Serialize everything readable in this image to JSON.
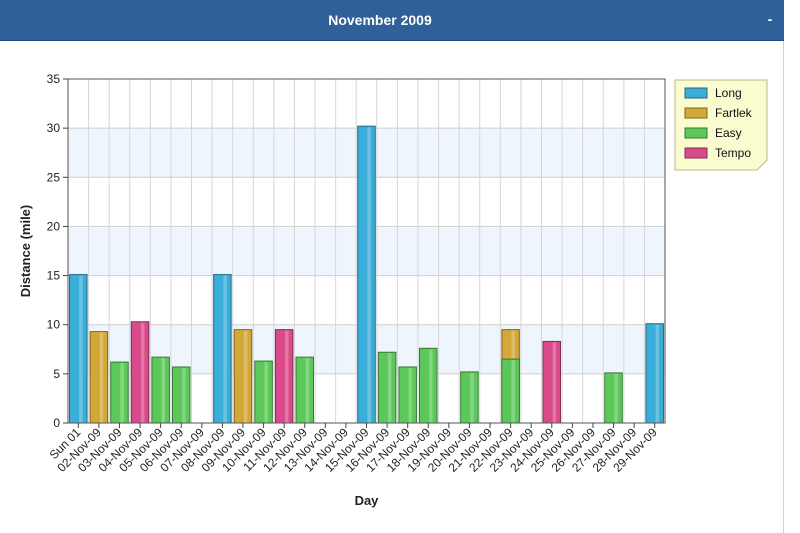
{
  "header": {
    "title": "November 2009",
    "collapse_label": "-"
  },
  "colors": {
    "header_bg": "#30609a",
    "band": "#eef5fc",
    "Long": "#3aaed8",
    "Fartlek": "#d4a838",
    "Easy": "#5cc85a",
    "Tempo": "#d84a8a"
  },
  "chart_data": {
    "type": "bar",
    "xlabel": "Day",
    "ylabel": "Distance (mile)",
    "ylim": [
      0,
      35
    ],
    "yticks": [
      0,
      5,
      10,
      15,
      20,
      25,
      30,
      35
    ],
    "grid": true,
    "legend_position": "top-right",
    "categories": [
      "Sun 01",
      "02-Nov-09",
      "03-Nov-09",
      "04-Nov-09",
      "05-Nov-09",
      "06-Nov-09",
      "07-Nov-09",
      "08-Nov-09",
      "09-Nov-09",
      "10-Nov-09",
      "11-Nov-09",
      "12-Nov-09",
      "13-Nov-09",
      "14-Nov-09",
      "15-Nov-09",
      "16-Nov-09",
      "17-Nov-09",
      "18-Nov-09",
      "19-Nov-09",
      "20-Nov-09",
      "21-Nov-09",
      "22-Nov-09",
      "23-Nov-09",
      "24-Nov-09",
      "25-Nov-09",
      "26-Nov-09",
      "27-Nov-09",
      "28-Nov-09",
      "29-Nov-09"
    ],
    "series": [
      {
        "name": "Long",
        "values": [
          15.1,
          null,
          null,
          null,
          null,
          null,
          null,
          15.1,
          null,
          null,
          null,
          null,
          null,
          null,
          30.2,
          null,
          null,
          null,
          null,
          null,
          null,
          null,
          null,
          null,
          null,
          null,
          null,
          null,
          10.1
        ]
      },
      {
        "name": "Fartlek",
        "values": [
          null,
          9.3,
          null,
          null,
          null,
          null,
          null,
          null,
          9.5,
          null,
          null,
          null,
          null,
          null,
          null,
          null,
          null,
          null,
          null,
          null,
          null,
          9.5,
          null,
          null,
          null,
          null,
          null,
          null,
          null
        ]
      },
      {
        "name": "Easy",
        "values": [
          null,
          null,
          6.2,
          null,
          6.7,
          5.7,
          null,
          null,
          null,
          6.3,
          null,
          6.7,
          null,
          null,
          null,
          7.2,
          5.7,
          7.6,
          null,
          5.2,
          null,
          6.5,
          null,
          null,
          null,
          null,
          5.1,
          null,
          null
        ]
      },
      {
        "name": "Tempo",
        "values": [
          null,
          null,
          null,
          10.3,
          null,
          null,
          null,
          null,
          null,
          null,
          9.5,
          null,
          null,
          null,
          null,
          null,
          null,
          null,
          null,
          null,
          null,
          null,
          null,
          8.3,
          null,
          null,
          null,
          null,
          null
        ]
      }
    ]
  }
}
